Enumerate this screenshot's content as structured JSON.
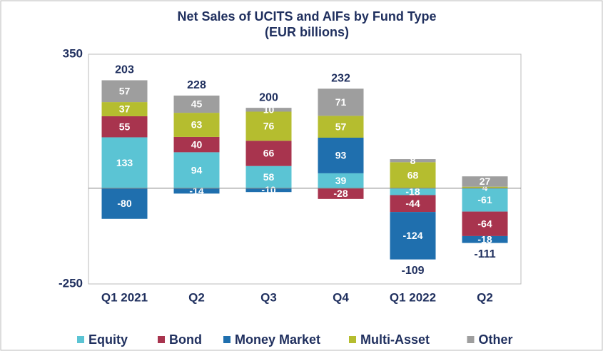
{
  "chart_data": {
    "type": "stacked_bar",
    "title": "Net Sales of UCITS and AIFs by Fund Type",
    "subtitle": "(EUR billions)",
    "categories": [
      "Q1 2021",
      "Q2",
      "Q3",
      "Q4",
      "Q1 2022",
      "Q2"
    ],
    "series": [
      {
        "name": "Equity",
        "color": "#5bc4d4",
        "values": [
          133,
          94,
          58,
          39,
          -18,
          -61
        ]
      },
      {
        "name": "Bond",
        "color": "#a8344e",
        "values": [
          55,
          40,
          66,
          -28,
          -44,
          -64
        ]
      },
      {
        "name": "Money Market",
        "color": "#1f6fae",
        "values": [
          -80,
          -14,
          -10,
          93,
          -124,
          -18
        ]
      },
      {
        "name": "Multi-Asset",
        "color": "#b5bd2f",
        "values": [
          37,
          63,
          76,
          57,
          68,
          4
        ]
      },
      {
        "name": "Other",
        "color": "#9e9e9e",
        "values": [
          57,
          45,
          10,
          71,
          8,
          27
        ]
      }
    ],
    "totals": [
      203,
      228,
      200,
      232,
      -109,
      -111
    ],
    "ylim": [
      -250,
      350
    ],
    "yticks": [
      -250,
      350
    ],
    "legend": "bottom"
  }
}
